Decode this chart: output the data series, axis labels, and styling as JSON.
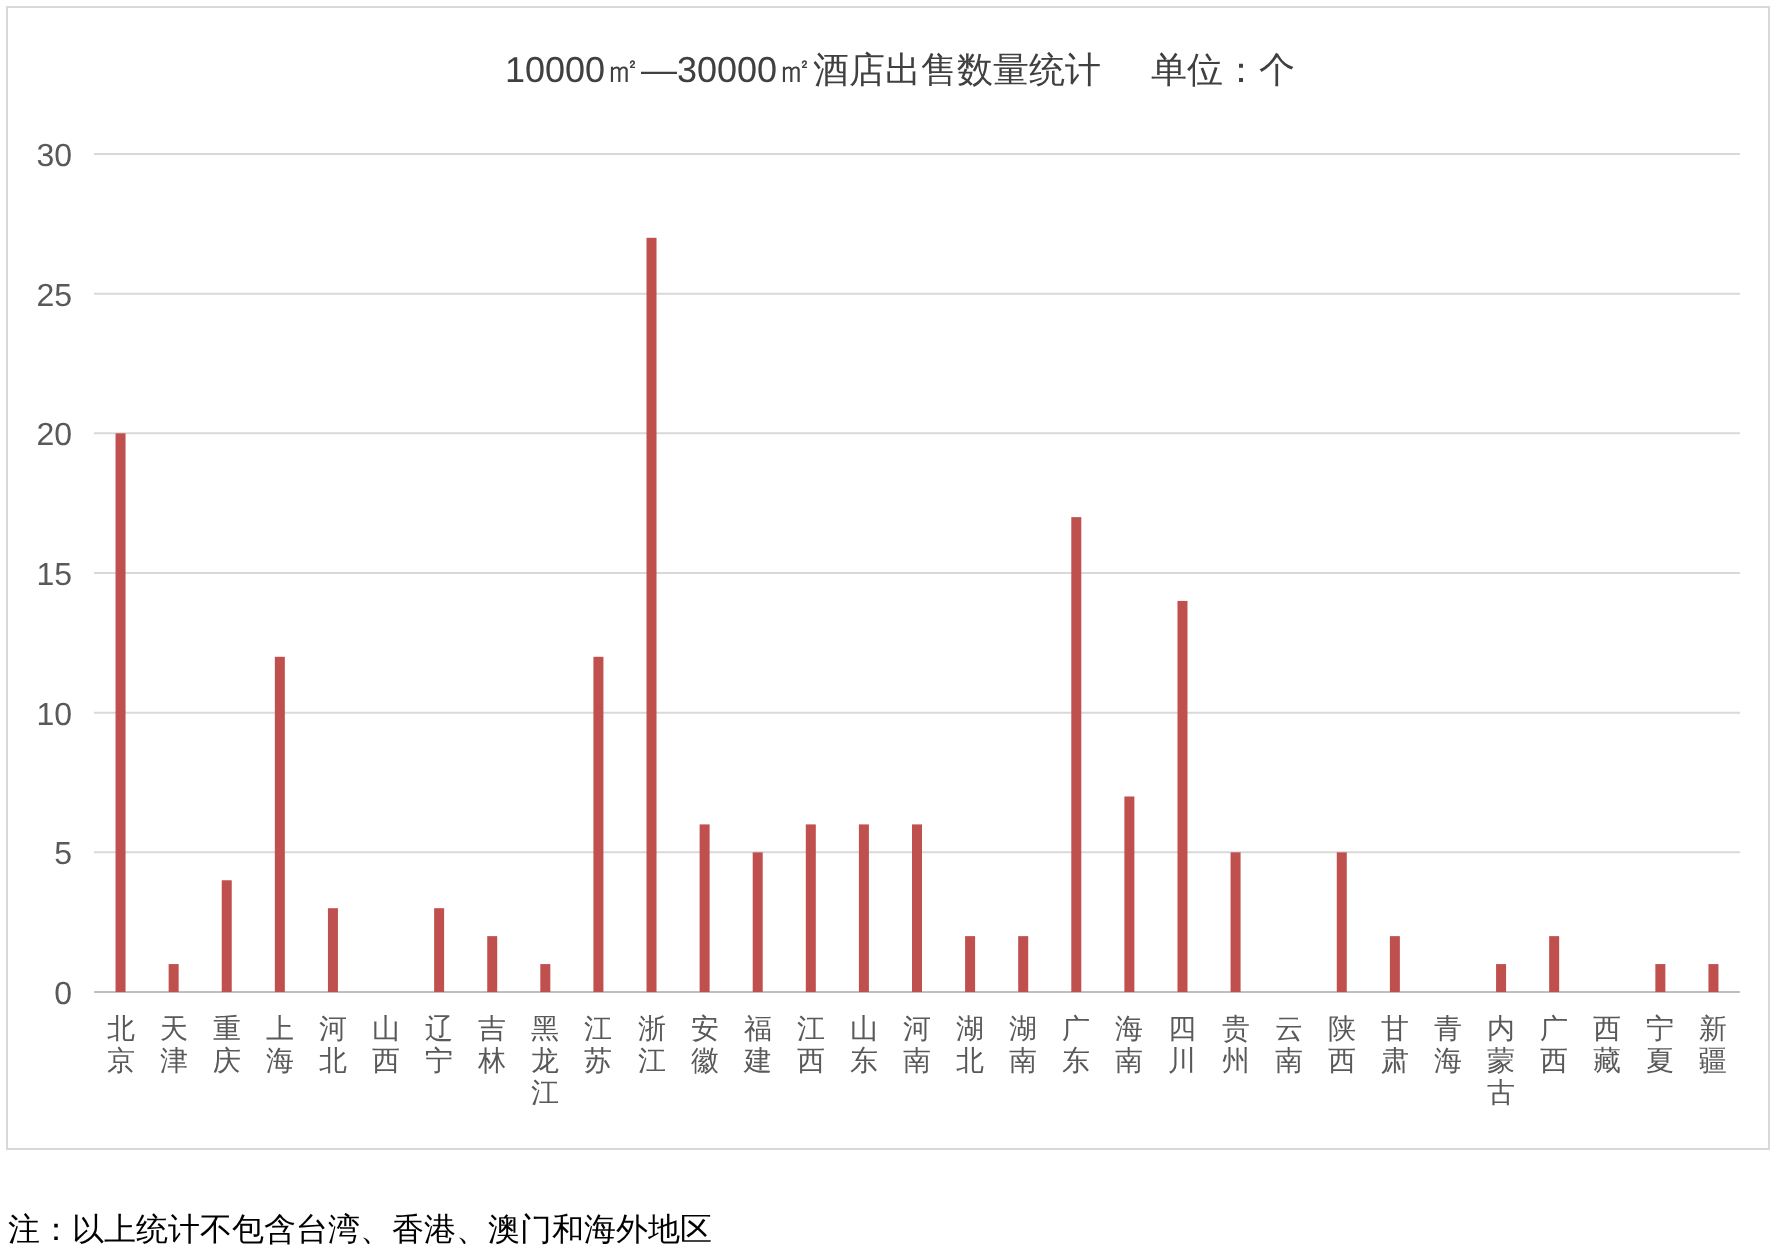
{
  "chart_data": {
    "type": "bar",
    "title": "10000㎡—30000㎡酒店出售数量统计     单位：个",
    "categories": [
      "北京",
      "天津",
      "重庆",
      "上海",
      "河北",
      "山西",
      "辽宁",
      "吉林",
      "黑龙江",
      "江苏",
      "浙江",
      "安徽",
      "福建",
      "江西",
      "山东",
      "河南",
      "湖北",
      "湖南",
      "广东",
      "海南",
      "四川",
      "贵州",
      "云南",
      "陕西",
      "甘肃",
      "青海",
      "内蒙古",
      "广西",
      "西藏",
      "宁夏",
      "新疆"
    ],
    "values": [
      20,
      1,
      4,
      12,
      3,
      0,
      3,
      2,
      1,
      12,
      27,
      6,
      5,
      6,
      6,
      6,
      2,
      2,
      17,
      7,
      14,
      5,
      0,
      5,
      2,
      0,
      1,
      2,
      0,
      1,
      1
    ],
    "color": "#c0504d",
    "ylim": [
      0,
      30
    ],
    "yticks": [
      0,
      5,
      10,
      15,
      20,
      25,
      30
    ],
    "grid": "y",
    "annotations": [
      "注：以上统计不包含台湾、香港、澳门和海外地区"
    ]
  }
}
